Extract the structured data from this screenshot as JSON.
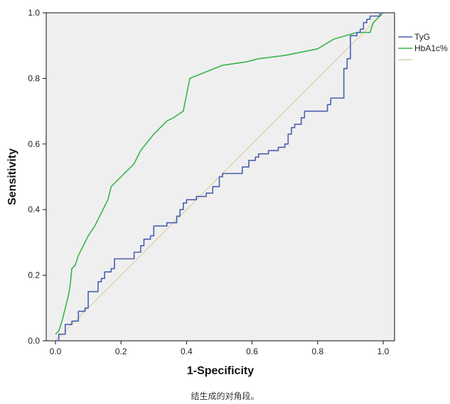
{
  "chart_data": {
    "type": "line",
    "xlabel": "1-Specificity",
    "ylabel": "Sensitivity",
    "xlim": [
      0,
      1
    ],
    "ylim": [
      0,
      1
    ],
    "x_ticks": [
      "0.0",
      "0.2",
      "0.4",
      "0.6",
      "0.8",
      "1.0"
    ],
    "y_ticks": [
      "0.0",
      "0.2",
      "0.4",
      "0.6",
      "0.8",
      "1.0"
    ],
    "legend_position": "right",
    "grid": false,
    "series": [
      {
        "name": "TyG",
        "color": "#4a5fb0",
        "step": true,
        "x": [
          0,
          0.01,
          0.03,
          0.05,
          0.07,
          0.09,
          0.1,
          0.13,
          0.14,
          0.15,
          0.17,
          0.18,
          0.24,
          0.26,
          0.27,
          0.29,
          0.3,
          0.34,
          0.37,
          0.38,
          0.39,
          0.4,
          0.43,
          0.46,
          0.48,
          0.5,
          0.51,
          0.57,
          0.59,
          0.61,
          0.62,
          0.64,
          0.65,
          0.67,
          0.68,
          0.7,
          0.71,
          0.72,
          0.73,
          0.75,
          0.76,
          0.78,
          0.8,
          0.83,
          0.84,
          0.85,
          0.88,
          0.89,
          0.9,
          0.92,
          0.93,
          0.94,
          0.95,
          0.96,
          0.99,
          1.0
        ],
        "y": [
          0,
          0.02,
          0.05,
          0.06,
          0.09,
          0.1,
          0.15,
          0.18,
          0.19,
          0.21,
          0.22,
          0.25,
          0.27,
          0.29,
          0.31,
          0.32,
          0.35,
          0.36,
          0.38,
          0.4,
          0.42,
          0.43,
          0.44,
          0.45,
          0.47,
          0.5,
          0.51,
          0.53,
          0.55,
          0.56,
          0.57,
          0.57,
          0.58,
          0.58,
          0.59,
          0.6,
          0.63,
          0.65,
          0.66,
          0.68,
          0.7,
          0.7,
          0.7,
          0.72,
          0.74,
          0.74,
          0.83,
          0.86,
          0.93,
          0.94,
          0.95,
          0.97,
          0.98,
          0.99,
          1.0,
          1.0
        ]
      },
      {
        "name": "HbA1c%",
        "color": "#3ab54a",
        "step": false,
        "x": [
          0,
          0.01,
          0.02,
          0.03,
          0.04,
          0.045,
          0.05,
          0.06,
          0.07,
          0.08,
          0.09,
          0.1,
          0.12,
          0.14,
          0.16,
          0.17,
          0.19,
          0.21,
          0.24,
          0.26,
          0.3,
          0.34,
          0.36,
          0.39,
          0.41,
          0.51,
          0.58,
          0.62,
          0.7,
          0.8,
          0.85,
          0.92,
          0.96,
          0.97,
          0.99,
          1.0
        ],
        "y": [
          0.02,
          0.03,
          0.06,
          0.1,
          0.14,
          0.17,
          0.22,
          0.23,
          0.26,
          0.28,
          0.3,
          0.32,
          0.35,
          0.39,
          0.43,
          0.47,
          0.49,
          0.51,
          0.54,
          0.58,
          0.63,
          0.67,
          0.68,
          0.7,
          0.8,
          0.84,
          0.85,
          0.86,
          0.87,
          0.89,
          0.92,
          0.94,
          0.94,
          0.97,
          0.99,
          1.0
        ]
      },
      {
        "name": "",
        "color": "#d9d2a6",
        "step": false,
        "x": [
          0,
          1
        ],
        "y": [
          0,
          1
        ]
      }
    ]
  },
  "caption": "结生成的对角段。"
}
